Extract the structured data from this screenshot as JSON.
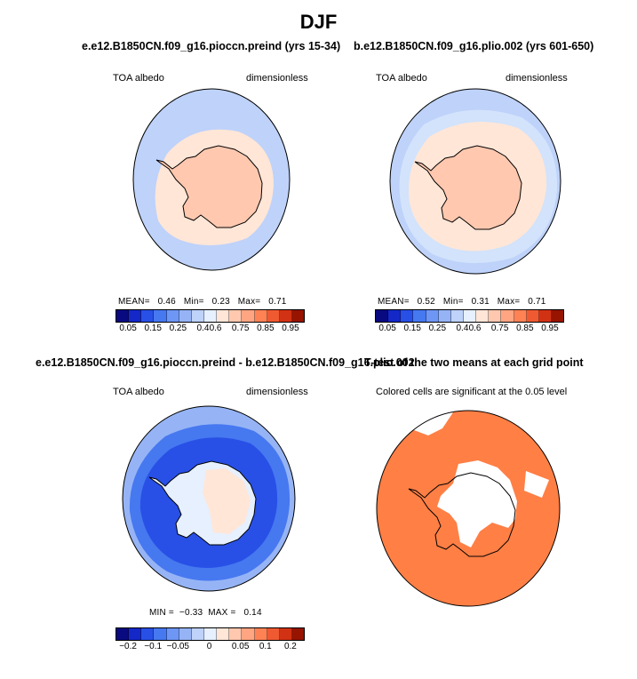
{
  "figure": {
    "title": "DJF"
  },
  "panels": [
    {
      "title": "e.e12.B1850CN.f09_g16.pioccn.preind (yrs 15-34)",
      "variable": "TOA albedo",
      "units": "dimensionless",
      "stats": {
        "mean_label": "MEAN=",
        "mean": "0.46",
        "min_label": "Min=",
        "min": "0.23",
        "max_label": "Max=",
        "max": "0.71"
      }
    },
    {
      "title": "b.e12.B1850CN.f09_g16.plio.002 (yrs 601-650)",
      "variable": "TOA albedo",
      "units": "dimensionless",
      "stats": {
        "mean_label": "MEAN=",
        "mean": "0.52",
        "min_label": "Min=",
        "min": "0.31",
        "max_label": "Max=",
        "max": "0.71"
      }
    },
    {
      "title": "e.e12.B1850CN.f09_g16.pioccn.preind - b.e12.B1850CN.f09_g16.plio.002",
      "variable": "TOA albedo",
      "units": "dimensionless",
      "stats": {
        "min_label": "MIN =",
        "min": "−0.33",
        "max_label": "MAX =",
        "max": "0.14"
      }
    },
    {
      "title": "T-test of the two means at each grid point",
      "note": "Colored cells are significant at the 0.05 level"
    }
  ],
  "colorbars": {
    "absolute": {
      "ticks": [
        "0.05",
        "0.15",
        "0.25",
        "0.4",
        "0.6",
        "0.75",
        "0.85",
        "0.95"
      ],
      "colors": [
        "#0a0a80",
        "#1428c8",
        "#2850e6",
        "#4678f0",
        "#6e96f5",
        "#96b4f5",
        "#bed2fa",
        "#e6f0ff",
        "#ffe6d7",
        "#ffc8af",
        "#ffa582",
        "#ff8255",
        "#f05a32",
        "#d23214",
        "#961400"
      ]
    },
    "difference": {
      "ticks": [
        "−0.2",
        "−0.1",
        "−0.05",
        "0",
        "0.05",
        "0.1",
        "0.2"
      ],
      "colors": [
        "#0a0a80",
        "#1428c8",
        "#2850e6",
        "#4678f0",
        "#6e96f5",
        "#96b4f5",
        "#bed2fa",
        "#e6f0ff",
        "#ffe6d7",
        "#ffc8af",
        "#ffa582",
        "#ff8255",
        "#f05a32",
        "#d23214",
        "#961400"
      ]
    }
  },
  "map_colors": {
    "ocean_low": "#bed2fa",
    "ocean_mid": "#d2e3fb",
    "sea_ice": "#ffe6d7",
    "antarctica": "#ffc8af",
    "diff_deep": "#2850e6",
    "diff_mid": "#4678f0",
    "diff_light": "#96b4f5",
    "diff_land": "#e6f0ff",
    "diff_pos": "#ffe6d7",
    "ttest_sig": "#ff7f45"
  }
}
